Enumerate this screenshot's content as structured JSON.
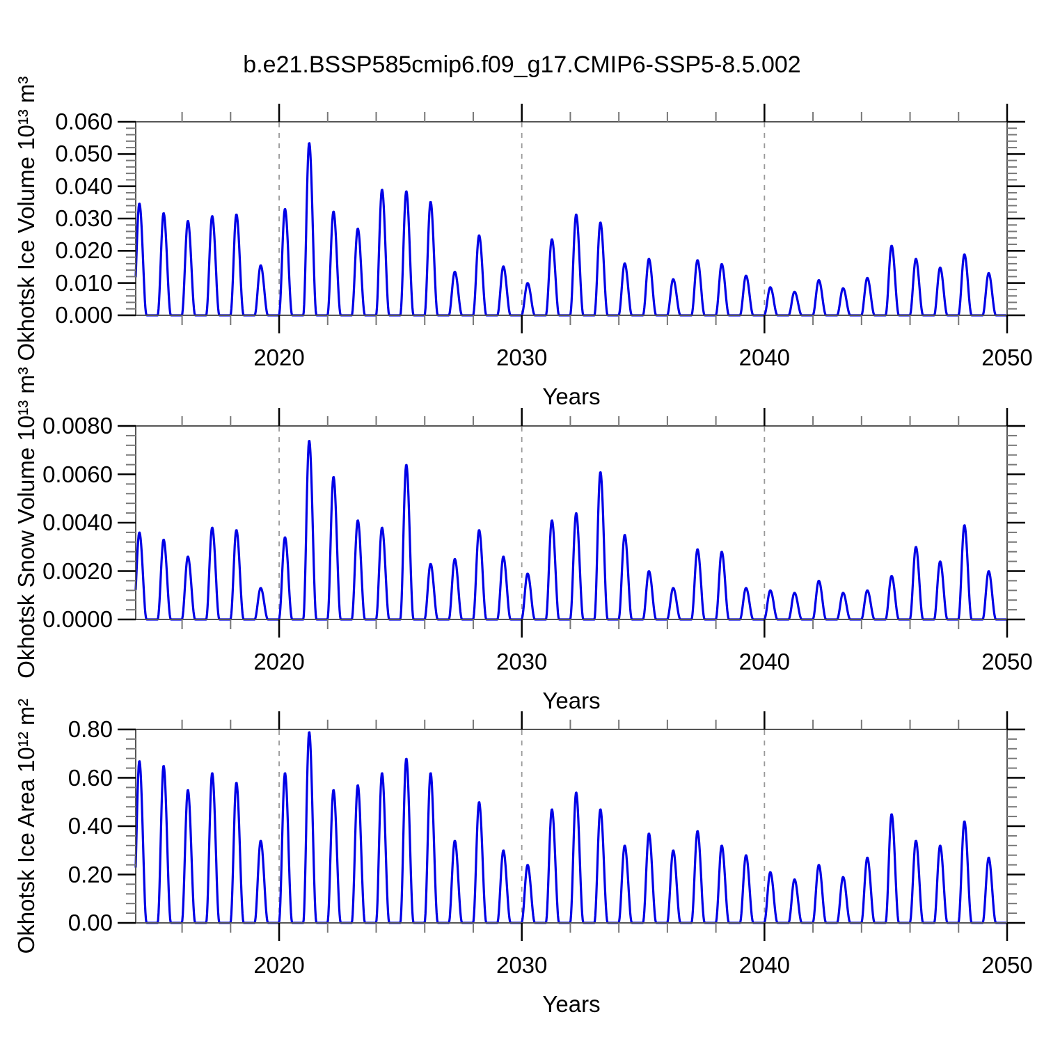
{
  "title": "b.e21.BSSP585cmip6.f09_g17.CMIP6-SSP5-8.5.002",
  "line_color": "#0000e6",
  "axis_color": "#555555",
  "major_tick_color": "#000000",
  "minor_tick_color": "#777777",
  "gridline_color": "#999999",
  "chart_data": [
    {
      "type": "line",
      "name": "Okhotsk Ice Volume",
      "ylabel": "Okhotsk Ice Volume 10¹³ m³",
      "xlabel": "Years",
      "x_range": [
        2014.09,
        2050
      ],
      "y_range": [
        0,
        0.06
      ],
      "y_major_tick_step": 0.01,
      "y_minor_divisions": 5,
      "y_tick_labels": [
        "0.000",
        "0.010",
        "0.020",
        "0.030",
        "0.040",
        "0.050",
        "0.060"
      ],
      "x_major_ticks": [
        2020,
        2030,
        2040,
        2050
      ],
      "x_tick_labels": [
        "2020",
        "2030",
        "2040",
        "2050"
      ],
      "x_minor_tick_step": 2,
      "dashed_gridline_years": [
        2020,
        2030,
        2040
      ],
      "grid": "vertical-dashed-only",
      "legend": "none",
      "seasonality_note": "annual cycle: sharp late-winter peak, near-zero value each summer",
      "annual_peak_years": [
        2014,
        2015,
        2016,
        2017,
        2018,
        2019,
        2020,
        2021,
        2022,
        2023,
        2024,
        2025,
        2026,
        2027,
        2028,
        2029,
        2030,
        2031,
        2032,
        2033,
        2034,
        2035,
        2036,
        2037,
        2038,
        2039,
        2040,
        2041,
        2042,
        2043,
        2044,
        2045,
        2046,
        2047,
        2048,
        2049
      ],
      "annual_peak_values": [
        0.0347,
        0.0317,
        0.0293,
        0.0308,
        0.0313,
        0.0155,
        0.033,
        0.0535,
        0.0322,
        0.0269,
        0.039,
        0.0385,
        0.0352,
        0.0135,
        0.0248,
        0.0152,
        0.01,
        0.0236,
        0.0313,
        0.0288,
        0.0161,
        0.0175,
        0.0112,
        0.0171,
        0.0159,
        0.0123,
        0.0087,
        0.0073,
        0.0109,
        0.0084,
        0.0116,
        0.0216,
        0.0175,
        0.0148,
        0.0189,
        0.0131
      ],
      "summer_minimum": 0.0
    },
    {
      "type": "line",
      "name": "Okhotsk Snow Volume",
      "ylabel": "Okhotsk Snow Volume 10¹³ m³",
      "xlabel": "Years",
      "x_range": [
        2014.09,
        2050
      ],
      "y_range": [
        0,
        0.008
      ],
      "y_major_tick_step": 0.002,
      "y_minor_divisions": 5,
      "y_tick_labels": [
        "0.0000",
        "0.0020",
        "0.0040",
        "0.0060",
        "0.0080"
      ],
      "x_major_ticks": [
        2020,
        2030,
        2040,
        2050
      ],
      "x_tick_labels": [
        "2020",
        "2030",
        "2040",
        "2050"
      ],
      "x_minor_tick_step": 2,
      "dashed_gridline_years": [
        2020,
        2030,
        2040
      ],
      "grid": "vertical-dashed-only",
      "legend": "none",
      "seasonality_note": "annual cycle: sharp late-winter peak, near-zero value each summer",
      "annual_peak_years": [
        2014,
        2015,
        2016,
        2017,
        2018,
        2019,
        2020,
        2021,
        2022,
        2023,
        2024,
        2025,
        2026,
        2027,
        2028,
        2029,
        2030,
        2031,
        2032,
        2033,
        2034,
        2035,
        2036,
        2037,
        2038,
        2039,
        2040,
        2041,
        2042,
        2043,
        2044,
        2045,
        2046,
        2047,
        2048,
        2049
      ],
      "annual_peak_values": [
        0.0036,
        0.0033,
        0.0026,
        0.0038,
        0.0037,
        0.0013,
        0.0034,
        0.0074,
        0.0059,
        0.0041,
        0.0038,
        0.0064,
        0.0023,
        0.0025,
        0.0037,
        0.0026,
        0.0019,
        0.0041,
        0.0044,
        0.0061,
        0.0035,
        0.002,
        0.0013,
        0.0029,
        0.0028,
        0.0013,
        0.0012,
        0.0011,
        0.0016,
        0.0011,
        0.0012,
        0.0018,
        0.003,
        0.0024,
        0.0039,
        0.002
      ],
      "summer_minimum": 0.0
    },
    {
      "type": "line",
      "name": "Okhotsk Ice Area",
      "ylabel": "Okhotsk Ice Area 10¹² m²",
      "xlabel": "Years",
      "x_range": [
        2014.09,
        2050
      ],
      "y_range": [
        0,
        0.8
      ],
      "y_major_tick_step": 0.2,
      "y_minor_divisions": 5,
      "y_tick_labels": [
        "0.00",
        "0.20",
        "0.40",
        "0.60",
        "0.80"
      ],
      "x_major_ticks": [
        2020,
        2030,
        2040,
        2050
      ],
      "x_tick_labels": [
        "2020",
        "2030",
        "2040",
        "2050"
      ],
      "x_minor_tick_step": 2,
      "dashed_gridline_years": [
        2020,
        2030,
        2040
      ],
      "grid": "vertical-dashed-only",
      "legend": "none",
      "seasonality_note": "annual cycle: sharp late-winter peak, near-zero value each summer",
      "annual_peak_years": [
        2014,
        2015,
        2016,
        2017,
        2018,
        2019,
        2020,
        2021,
        2022,
        2023,
        2024,
        2025,
        2026,
        2027,
        2028,
        2029,
        2030,
        2031,
        2032,
        2033,
        2034,
        2035,
        2036,
        2037,
        2038,
        2039,
        2040,
        2041,
        2042,
        2043,
        2044,
        2045,
        2046,
        2047,
        2048,
        2049
      ],
      "annual_peak_values": [
        0.67,
        0.65,
        0.55,
        0.62,
        0.58,
        0.34,
        0.62,
        0.79,
        0.55,
        0.57,
        0.62,
        0.68,
        0.62,
        0.34,
        0.5,
        0.3,
        0.24,
        0.47,
        0.54,
        0.47,
        0.32,
        0.37,
        0.3,
        0.38,
        0.32,
        0.28,
        0.21,
        0.18,
        0.24,
        0.19,
        0.27,
        0.45,
        0.34,
        0.32,
        0.42,
        0.27
      ],
      "summer_minimum": 0.0
    }
  ]
}
